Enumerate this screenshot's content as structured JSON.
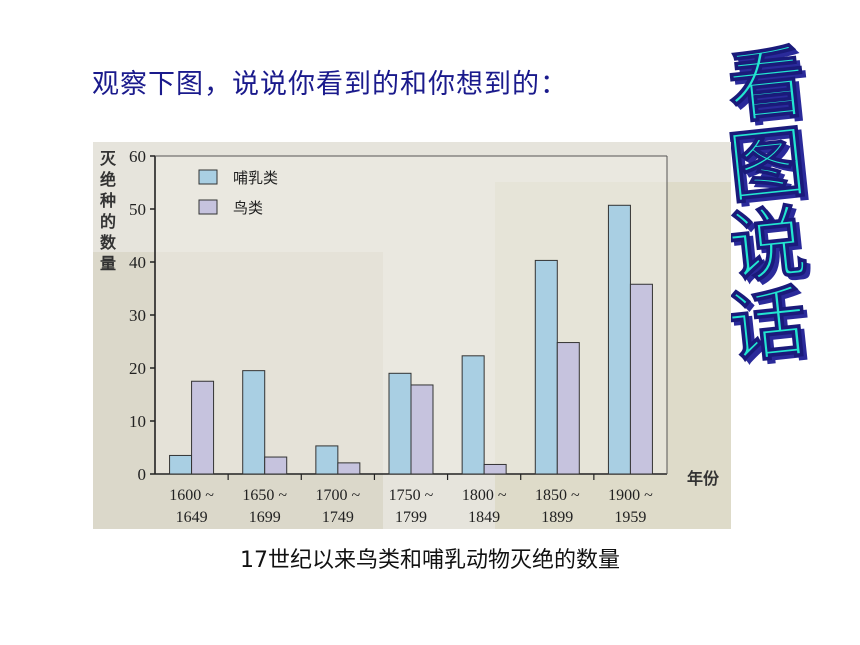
{
  "slide": {
    "heading": "观察下图，说说你看到的和你想到的：",
    "side_title": [
      "看",
      "图",
      "说",
      "话"
    ],
    "caption": "17世纪以来鸟类和哺乳动物灭绝的数量",
    "colors": {
      "heading": "#1a1a8c",
      "side_art_fill": "#22e6d0",
      "side_art_shadow": "#2a2a9a"
    }
  },
  "chart_data": {
    "type": "bar",
    "ylabel": "灭绝种的数量",
    "xlabel": "年份",
    "ylim": [
      0,
      60
    ],
    "yticks": [
      0,
      10,
      20,
      30,
      40,
      50,
      60
    ],
    "categories": [
      [
        "1600 ~",
        "1649"
      ],
      [
        "1650 ~",
        "1699"
      ],
      [
        "1700 ~",
        "1749"
      ],
      [
        "1750 ~",
        "1799"
      ],
      [
        "1800 ~",
        "1849"
      ],
      [
        "1850 ~",
        "1899"
      ],
      [
        "1900 ~",
        "1959"
      ]
    ],
    "series": [
      {
        "name": "哺乳类",
        "color": "#a9cfe3",
        "values": [
          3.5,
          19.5,
          5.3,
          19,
          22.3,
          40.3,
          50.7
        ]
      },
      {
        "name": "鸟类",
        "color": "#c6c3de",
        "values": [
          17.5,
          3.2,
          2.1,
          16.8,
          1.8,
          24.8,
          35.8
        ]
      }
    ],
    "legend_position": "top-left",
    "grid": false
  }
}
